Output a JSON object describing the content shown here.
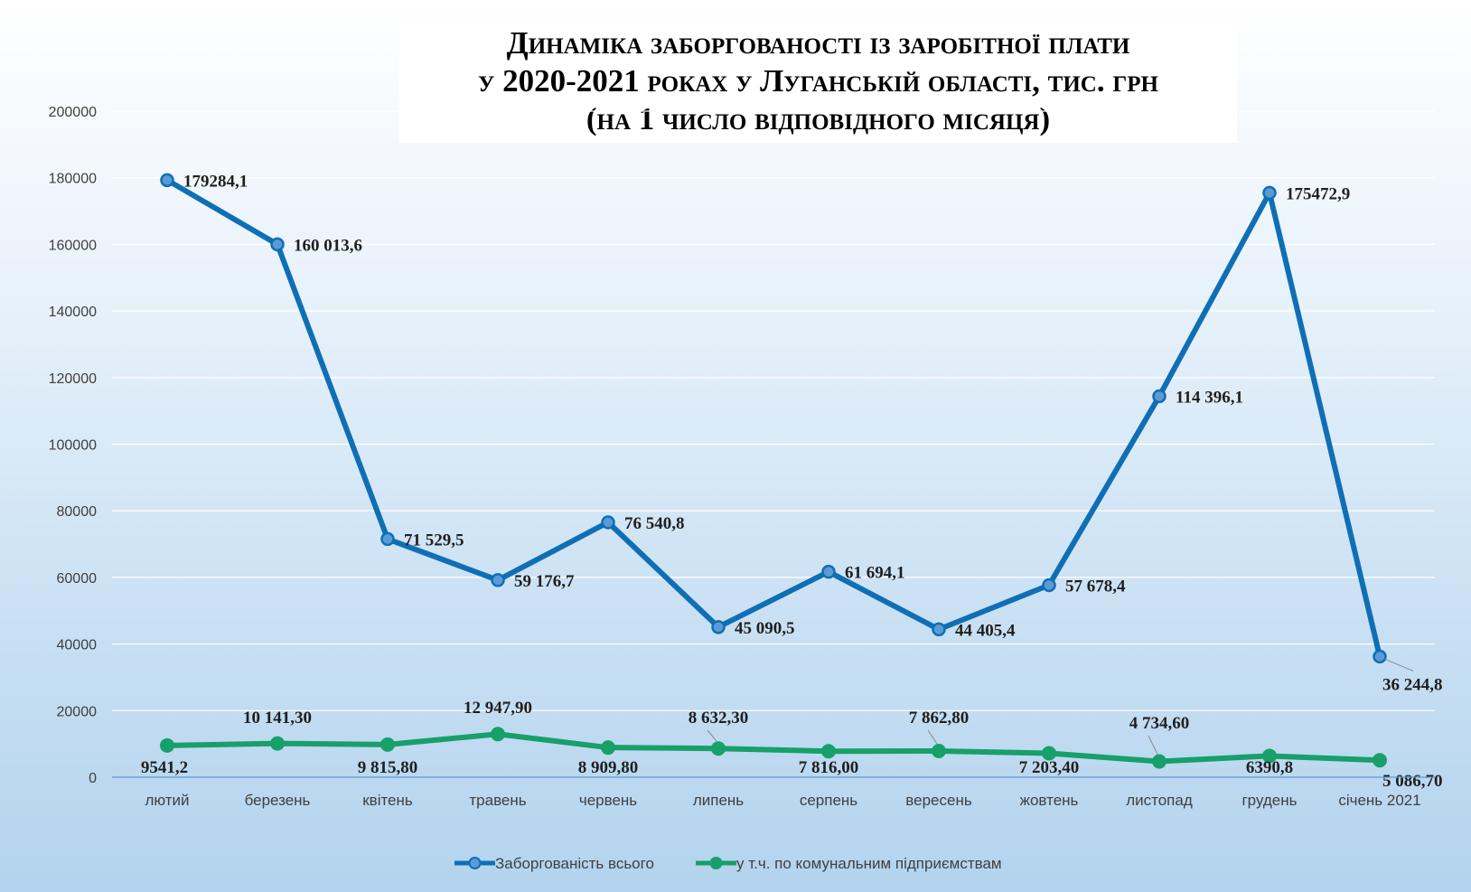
{
  "title": {
    "line1": "Динаміка заборгованості із заробітної плати",
    "line2": "у 2020-2021 роках у Луганській області, тис. грн",
    "line3": "(на 1 число відповідного місяця)"
  },
  "colors": {
    "total": "#0f6fb5",
    "communal": "#17a06a",
    "grid": "#ffffff",
    "axis": "#5b9bd5"
  },
  "chart_data": {
    "type": "line",
    "categories": [
      "лютий",
      "березень",
      "квітень",
      "травень",
      "червень",
      "липень",
      "серпень",
      "вересень",
      "жовтень",
      "листопад",
      "грудень",
      "січень 2021"
    ],
    "ylim": [
      0,
      200000
    ],
    "yticks": [
      "0",
      "20000",
      "40000",
      "60000",
      "80000",
      "100000",
      "120000",
      "140000",
      "160000",
      "180000",
      "200000"
    ],
    "grid": true,
    "legend_position": "bottom",
    "series": [
      {
        "name": "Заборгованість всього",
        "values": [
          179284.1,
          160013.6,
          71529.5,
          59176.7,
          76540.8,
          45090.5,
          61694.1,
          44405.4,
          57678.4,
          114396.1,
          175472.9,
          36244.8
        ],
        "labels": [
          "179284,1",
          "160 013,6",
          "71 529,5",
          "59 176,7",
          "76 540,8",
          "45 090,5",
          "61 694,1",
          "44 405,4",
          "57 678,4",
          "114 396,1",
          "175472,9",
          "36 244,8"
        ]
      },
      {
        "name": "у т.ч. по комунальним підприємствам",
        "values": [
          9541.2,
          10141.3,
          9815.8,
          12947.9,
          8909.8,
          8632.3,
          7816.0,
          7862.8,
          7203.4,
          4734.6,
          6390.8,
          5086.7
        ],
        "labels": [
          "9541,2",
          "10 141,30",
          "9 815,80",
          "12 947,90",
          "8 909,80",
          "8 632,30",
          "7 816,00",
          "7 862,80",
          "7 203,40",
          "4 734,60",
          "6390,8",
          "5 086,70"
        ]
      }
    ]
  }
}
